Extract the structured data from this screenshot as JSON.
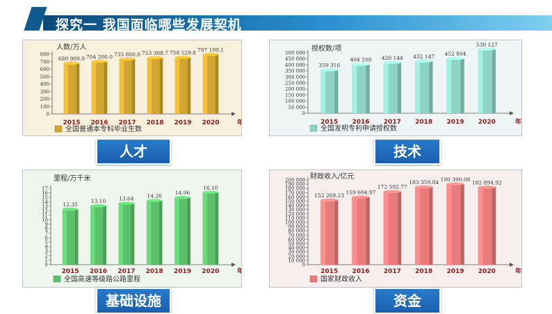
{
  "title": "探究一 我国面临哪些发展契机",
  "labels": [
    "人才",
    "技术",
    "基础设施",
    "资金"
  ],
  "chart_data": [
    {
      "type": "bar",
      "unit_label": "人数/万人",
      "categories": [
        "2015",
        "2016",
        "2017",
        "2018",
        "2019",
        "2020"
      ],
      "x_suffix": "年份",
      "values": [
        680900.0,
        704200.0,
        735800.0,
        753308.7,
        758529.8,
        797199.1
      ],
      "value_labels": [
        "680 900.0",
        "704 200.0",
        "735 800.0",
        "753 308.7",
        "758 529.8",
        "797 199.1"
      ],
      "yticks": [
        "0",
        "100",
        "200",
        "300",
        "400",
        "500",
        "600",
        "700",
        "800"
      ],
      "ylim": [
        0,
        800
      ],
      "legend": "全国普通本专科毕业生数",
      "color": "#d2a632"
    },
    {
      "type": "bar",
      "unit_label": "授权数/项",
      "categories": [
        "2015",
        "2016",
        "2017",
        "2018",
        "2019",
        "2020"
      ],
      "x_suffix": "年份",
      "values": [
        359316,
        404208,
        420144,
        432147,
        452804,
        530127
      ],
      "value_labels": [
        "359 316",
        "404 208",
        "420 144",
        "432 147",
        "452 804",
        "530 127"
      ],
      "yticks": [
        "0",
        "50 000",
        "100 000",
        "150 000",
        "200 000",
        "250 000",
        "300 000",
        "350 000",
        "400 000",
        "450 000",
        "500 000"
      ],
      "ylim": [
        0,
        500000
      ],
      "legend": "全国发明专利申请授权数",
      "color": "#8fd2c6"
    },
    {
      "type": "bar",
      "unit_label": "里程/万千米",
      "categories": [
        "2015",
        "2016",
        "2017",
        "2018",
        "2019",
        "2020"
      ],
      "x_suffix": "年份",
      "values": [
        12.35,
        13.1,
        13.64,
        14.26,
        14.96,
        16.1
      ],
      "value_labels": [
        "12.35",
        "13.10",
        "13.64",
        "14.26",
        "14.96",
        "16.10"
      ],
      "yticks": [
        "0",
        "1",
        "2",
        "3",
        "4",
        "5",
        "6",
        "7",
        "8",
        "9",
        "10",
        "11",
        "12",
        "13",
        "14",
        "15",
        "16",
        "17"
      ],
      "ylim": [
        0,
        17
      ],
      "legend": "全国高速等级路公路里程",
      "color": "#5cc06a"
    },
    {
      "type": "bar",
      "unit_label": "财政收入/亿元",
      "categories": [
        "2015",
        "2016",
        "2017",
        "2018",
        "2019",
        "2020"
      ],
      "x_suffix": "年份",
      "values": [
        152269.23,
        159604.97,
        172592.77,
        183359.84,
        190390.08,
        182894.92
      ],
      "value_labels": [
        "152 269.23",
        "159 604.97",
        "172 592.77",
        "183 359.84",
        "190 390.08",
        "182 894.92"
      ],
      "yticks": [
        "0",
        "10 000",
        "20 000",
        "30 000",
        "40 000",
        "50 000",
        "60 000",
        "70 000",
        "80 000",
        "90 000",
        "100 000",
        "110 000",
        "120 000",
        "130 000",
        "140 000",
        "150 000",
        "160 000",
        "170 000",
        "180 000",
        "190 000",
        "200 000"
      ],
      "ylim": [
        0,
        200000
      ],
      "legend": "国家财政收入",
      "color": "#e67c7c"
    }
  ]
}
